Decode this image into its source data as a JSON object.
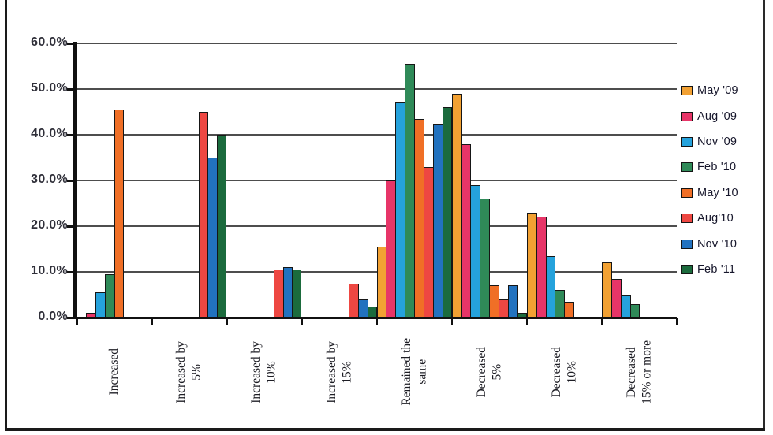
{
  "frame": {
    "background": "#ffffff",
    "border_color": "#1a1a1a",
    "gridline_color": "#4d4d4d",
    "axis_color": "#111111",
    "bar_outline_color": "#161616",
    "y_label_color": "#30303a",
    "category_label_color": "#1d1d24",
    "legend_text_color": "#16162b"
  },
  "chart_data": {
    "type": "bar",
    "title": "",
    "xlabel": "",
    "ylabel": "",
    "grid": true,
    "ylim": [
      0,
      60
    ],
    "y_axis": {
      "min": 0,
      "max": 60,
      "step": 10,
      "ticks": [
        "60.0%",
        "50.0%",
        "40.0%",
        "30.0%",
        "20.0%",
        "10.0%",
        "0.0%"
      ]
    },
    "categories": [
      "Increased",
      "Increased by 5%",
      "Increased by 10%",
      "Increased by 15%",
      "Remained the same",
      "Decreased 5%",
      "Decreased 10%",
      "Decreased 15% or more"
    ],
    "category_label_lines": [
      [
        "Increased"
      ],
      [
        "Increased by",
        "5%"
      ],
      [
        "Increased by",
        "10%"
      ],
      [
        "Increased by",
        "15%"
      ],
      [
        "Remained the",
        "same"
      ],
      [
        "Decreased",
        "5%"
      ],
      [
        "Decreased",
        "10%"
      ],
      [
        "Decreased",
        "15% or more"
      ]
    ],
    "series": [
      {
        "name": "May '09",
        "color": "#F2A133",
        "values": [
          0,
          0,
          0,
          0,
          15.5,
          49,
          23,
          12
        ]
      },
      {
        "name": "Aug '09",
        "color": "#E73568",
        "values": [
          1,
          0,
          0,
          0,
          30,
          38,
          22,
          8.5
        ]
      },
      {
        "name": "Nov '09",
        "color": "#25A2DC",
        "values": [
          5.5,
          0,
          0,
          0,
          47,
          29,
          13.5,
          5
        ]
      },
      {
        "name": "Feb '10",
        "color": "#2F8A58",
        "values": [
          9.5,
          0,
          0,
          0,
          55.5,
          26,
          6,
          3
        ]
      },
      {
        "name": "May '10",
        "color": "#F06F26",
        "values": [
          45.5,
          0,
          0,
          0,
          43.5,
          7,
          3.5,
          0
        ]
      },
      {
        "name": "Aug'10",
        "color": "#EE4742",
        "values": [
          0,
          45,
          10.5,
          7.5,
          33,
          4,
          0,
          0
        ]
      },
      {
        "name": "Nov '10",
        "color": "#2272BF",
        "values": [
          0,
          35,
          11,
          4,
          42.5,
          7,
          0,
          0
        ]
      },
      {
        "name": "Feb '11",
        "color": "#1B6B3D",
        "values": [
          0,
          40,
          10.5,
          2.5,
          46,
          1,
          0,
          0
        ]
      }
    ],
    "legend": {
      "position": "right",
      "entries": [
        "May '09",
        "Aug '09",
        "Nov '09",
        "Feb '10",
        "May '10",
        "Aug'10",
        "Nov '10",
        "Feb '11"
      ]
    }
  }
}
